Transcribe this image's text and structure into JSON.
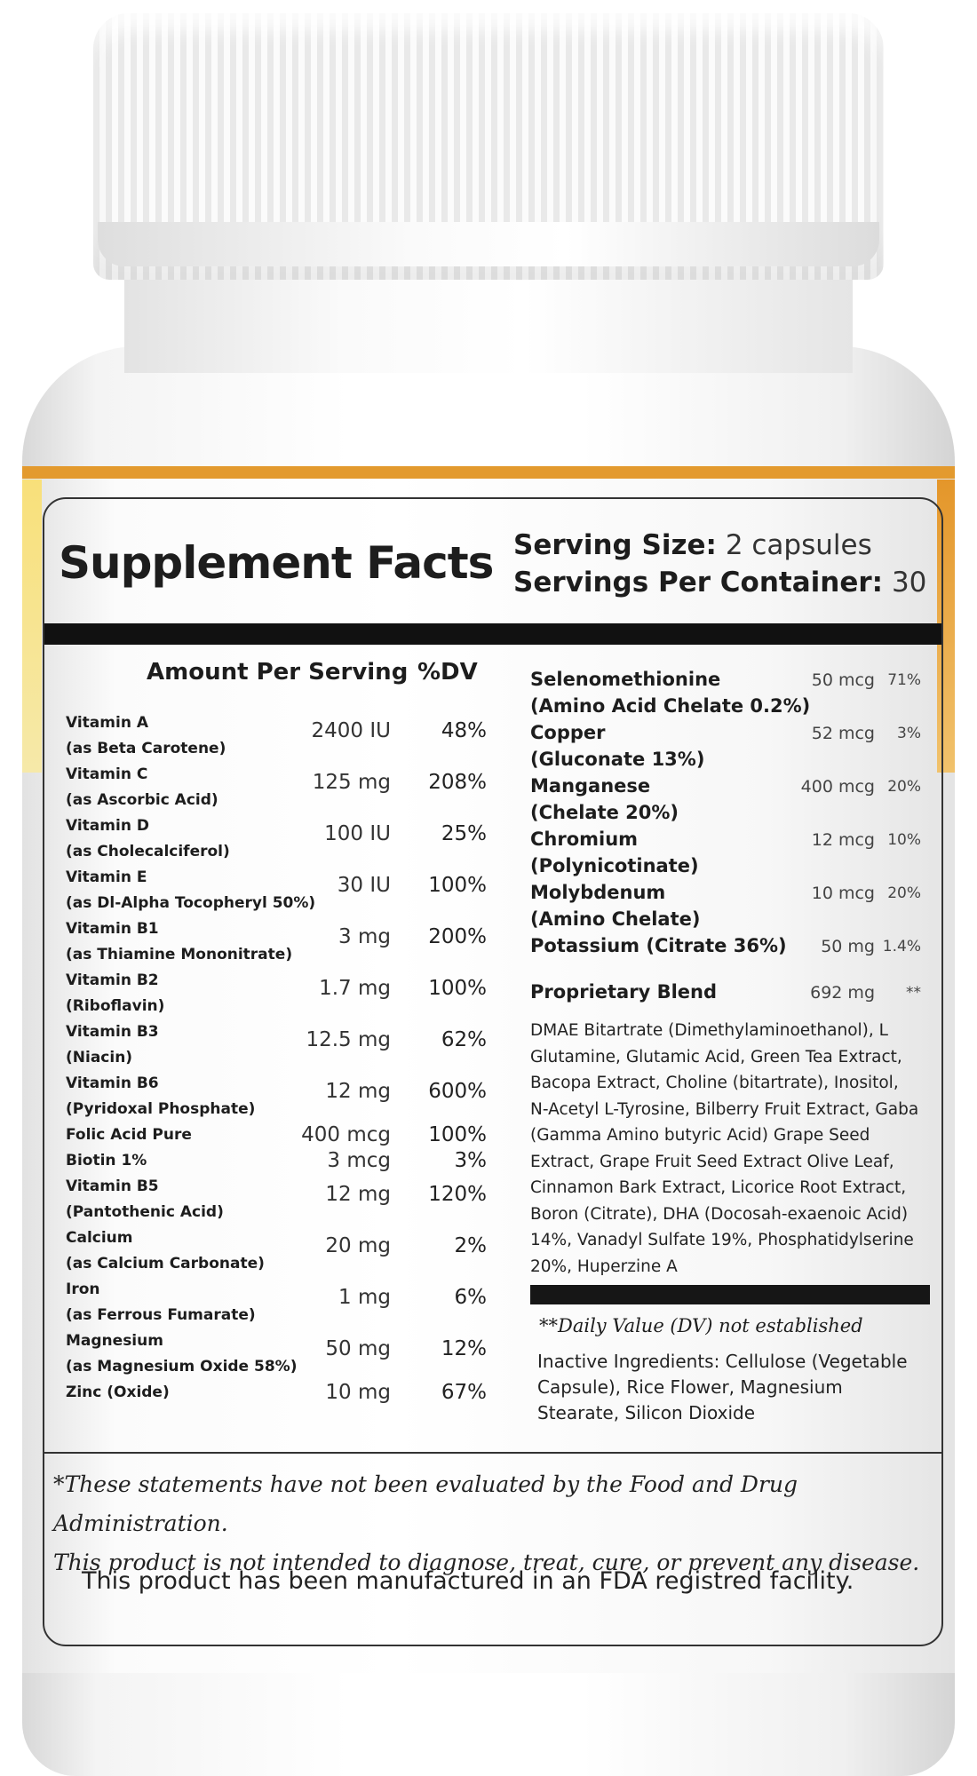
{
  "label": {
    "title": "Supplement Facts",
    "serving_size_label": "Serving Size:",
    "serving_size_value": "2 capsules",
    "servings_label": "Servings Per Container:",
    "servings_value": "30",
    "amount_header": "Amount Per Serving",
    "dv_header": "%DV",
    "left_rows": [
      {
        "name": "Vitamin A",
        "sub": "(as Beta Carotene)",
        "amount": "2400 IU",
        "dv": "48%"
      },
      {
        "name": "Vitamin C",
        "sub": "(as Ascorbic Acid)",
        "amount": "125 mg",
        "dv": "208%"
      },
      {
        "name": "Vitamin D",
        "sub": "(as Cholecalciferol)",
        "amount": "100 IU",
        "dv": "25%"
      },
      {
        "name": "Vitamin E",
        "sub": "(as Dl-Alpha Tocopheryl 50%)",
        "amount": "30 IU",
        "dv": "100%"
      },
      {
        "name": "Vitamin B1",
        "sub": "(as Thiamine Mononitrate)",
        "amount": "3 mg",
        "dv": "200%"
      },
      {
        "name": "Vitamin B2",
        "sub": "(Riboflavin)",
        "amount": "1.7 mg",
        "dv": "100%"
      },
      {
        "name": "Vitamin B3",
        "sub": "(Niacin)",
        "amount": "12.5 mg",
        "dv": "62%"
      },
      {
        "name": "Vitamin B6",
        "sub": "(Pyridoxal Phosphate)",
        "amount": "12 mg",
        "dv": "600%"
      },
      {
        "name": "Folic Acid Pure",
        "sub": "",
        "amount": "400 mcg",
        "dv": "100%"
      },
      {
        "name": "Biotin 1%",
        "sub": "",
        "amount": "3 mcg",
        "dv": "3%"
      },
      {
        "name": "Vitamin B5",
        "sub": "(Pantothenic Acid)",
        "amount": "12 mg",
        "dv": "120%"
      },
      {
        "name": "Calcium",
        "sub": "(as Calcium Carbonate)",
        "amount": "20 mg",
        "dv": "2%"
      },
      {
        "name": "Iron",
        "sub": "(as Ferrous Fumarate)",
        "amount": "1 mg",
        "dv": "6%"
      },
      {
        "name": "Magnesium",
        "sub": "(as Magnesium Oxide 58%)",
        "amount": "50 mg",
        "dv": "12%"
      },
      {
        "name": "Zinc (Oxide)",
        "sub": "",
        "amount": "10 mg",
        "dv": "67%"
      }
    ],
    "right_rows": [
      {
        "name": "Selenomethionine",
        "sub": "(Amino Acid Chelate 0.2%)",
        "amount": "50 mcg",
        "dv": "71%"
      },
      {
        "name": "Copper",
        "sub": "(Gluconate 13%)",
        "amount": "52 mcg",
        "dv": "3%"
      },
      {
        "name": "Manganese",
        "sub": "(Chelate 20%)",
        "amount": "400 mcg",
        "dv": "20%"
      },
      {
        "name": "Chromium",
        "sub": "(Polynicotinate)",
        "amount": "12 mcg",
        "dv": "10%"
      },
      {
        "name": "Molybdenum",
        "sub": "(Amino Chelate)",
        "amount": "10 mcg",
        "dv": "20%"
      },
      {
        "name": "Potassium (Citrate 36%)",
        "sub": "",
        "amount": "50 mg",
        "dv": "1.4%"
      }
    ],
    "blend": {
      "name": "Proprietary Blend",
      "amount": "692 mg",
      "dv": "**"
    },
    "blend_ingredients": "DMAE Bitartrate (Dimethylaminoethanol), L Glutamine, Glutamic Acid, Green Tea Extract, Bacopa Extract, Choline (bitartrate), Inositol, N-Acetyl L-Tyrosine, Bilberry Fruit Extract, Gaba (Gamma Amino butyric Acid) Grape Seed Extract, Grape Fruit Seed Extract Olive Leaf, Cinnamon Bark Extract, Licorice Root Extract, Boron (Citrate), DHA (Docosah-exaenoic Acid) 14%, Vanadyl Sulfate 19%, Phosphatidylserine 20%, Huperzine A",
    "dv_note": "**Daily Value (DV) not established",
    "inactive": "Inactive Ingredients: Cellulose (Vegetable Capsule), Rice Flower, Magnesium Stearate, Silicon Dioxide",
    "disclaimer_1": "*These statements have not been evaluated by the Food and Drug Administration.",
    "disclaimer_2": "This product is not intended to diagnose, treat, cure, or prevent any disease.",
    "facility": "This product has been manufactured in an FDA registred facility."
  },
  "colors": {
    "label_stripe": "#e39a2e",
    "bar": "#111111"
  }
}
